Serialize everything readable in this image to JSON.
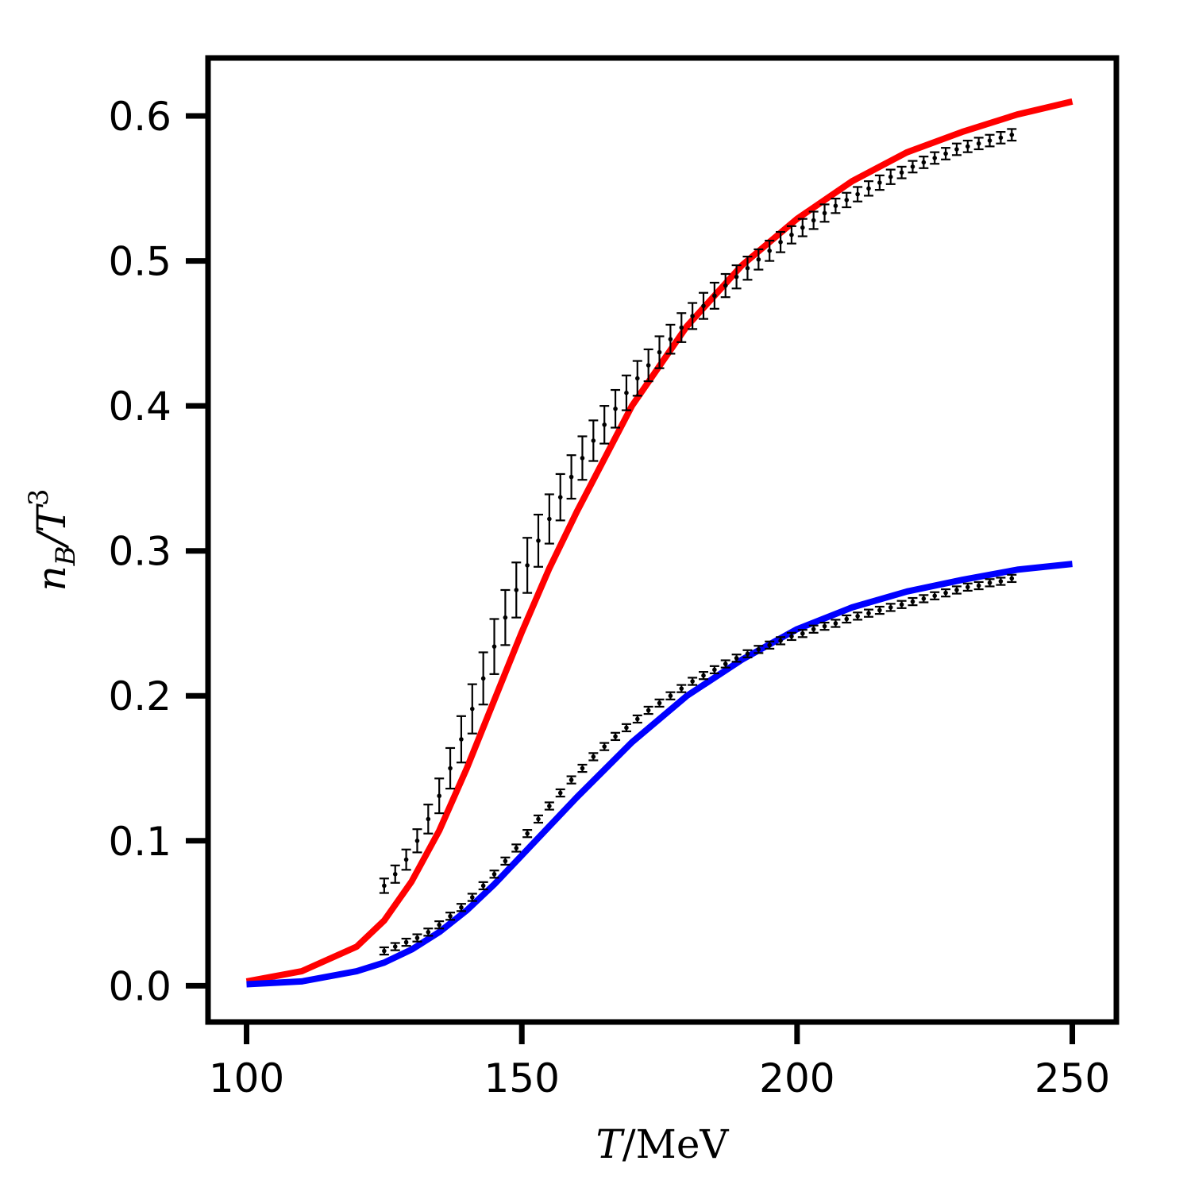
{
  "chart_data": {
    "type": "line",
    "xlabel_var": "T",
    "xlabel_unit": "/MeV",
    "ylabel_var": "n",
    "ylabel_sub": "B",
    "ylabel_mid": "/T",
    "ylabel_sup": "3",
    "xlim": [
      93,
      258
    ],
    "ylim": [
      -0.025,
      0.64
    ],
    "xticks": [
      100,
      150,
      200,
      250
    ],
    "xtick_labels": [
      "100",
      "150",
      "200",
      "250"
    ],
    "yticks": [
      0.0,
      0.1,
      0.2,
      0.3,
      0.4,
      0.5,
      0.6
    ],
    "ytick_labels": [
      "0.0",
      "0.1",
      "0.2",
      "0.3",
      "0.4",
      "0.5",
      "0.6"
    ],
    "grid": false,
    "series": [
      {
        "color": "#ff0000",
        "style": "line",
        "x": [
          100,
          110,
          120,
          125,
          130,
          135,
          140,
          145,
          150,
          155,
          160,
          170,
          180,
          190,
          200,
          210,
          220,
          230,
          240,
          250
        ],
        "y": [
          0.003,
          0.01,
          0.027,
          0.045,
          0.072,
          0.107,
          0.15,
          0.197,
          0.244,
          0.288,
          0.327,
          0.4,
          0.455,
          0.497,
          0.529,
          0.555,
          0.575,
          0.589,
          0.601,
          0.61
        ]
      },
      {
        "color": "#0000ff",
        "style": "line",
        "x": [
          100,
          110,
          120,
          125,
          130,
          135,
          140,
          145,
          150,
          155,
          160,
          170,
          180,
          190,
          200,
          210,
          220,
          230,
          240,
          250
        ],
        "y": [
          0.001,
          0.003,
          0.01,
          0.016,
          0.025,
          0.037,
          0.052,
          0.07,
          0.09,
          0.11,
          0.13,
          0.168,
          0.2,
          0.225,
          0.246,
          0.261,
          0.272,
          0.28,
          0.287,
          0.291
        ]
      },
      {
        "color": "#000000",
        "style": "errorbar",
        "x": [
          125,
          127,
          129,
          131,
          133,
          135,
          137,
          139,
          141,
          143,
          145,
          147,
          149,
          151,
          153,
          155,
          157,
          159,
          161,
          163,
          165,
          167,
          169,
          171,
          173,
          175,
          177,
          179,
          181,
          183,
          185,
          187,
          189,
          191,
          193,
          195,
          197,
          199,
          201,
          203,
          205,
          207,
          209,
          211,
          213,
          215,
          217,
          219,
          221,
          223,
          225,
          227,
          229,
          231,
          233,
          235,
          237,
          239
        ],
        "y": [
          0.069,
          0.077,
          0.087,
          0.1,
          0.115,
          0.131,
          0.15,
          0.17,
          0.191,
          0.212,
          0.234,
          0.254,
          0.273,
          0.29,
          0.307,
          0.322,
          0.337,
          0.351,
          0.364,
          0.376,
          0.387,
          0.398,
          0.409,
          0.419,
          0.428,
          0.437,
          0.446,
          0.454,
          0.462,
          0.469,
          0.476,
          0.483,
          0.489,
          0.495,
          0.501,
          0.507,
          0.513,
          0.518,
          0.523,
          0.528,
          0.533,
          0.538,
          0.542,
          0.546,
          0.55,
          0.554,
          0.558,
          0.561,
          0.565,
          0.568,
          0.571,
          0.574,
          0.577,
          0.579,
          0.581,
          0.583,
          0.585,
          0.587
        ],
        "err": [
          0.005,
          0.006,
          0.007,
          0.008,
          0.01,
          0.012,
          0.014,
          0.016,
          0.017,
          0.018,
          0.019,
          0.019,
          0.019,
          0.019,
          0.018,
          0.017,
          0.016,
          0.015,
          0.015,
          0.014,
          0.013,
          0.013,
          0.012,
          0.012,
          0.011,
          0.011,
          0.01,
          0.01,
          0.009,
          0.009,
          0.009,
          0.008,
          0.008,
          0.008,
          0.007,
          0.007,
          0.007,
          0.006,
          0.006,
          0.006,
          0.006,
          0.005,
          0.005,
          0.005,
          0.005,
          0.005,
          0.005,
          0.004,
          0.004,
          0.004,
          0.004,
          0.004,
          0.004,
          0.004,
          0.004,
          0.004,
          0.004,
          0.004
        ]
      },
      {
        "color": "#000000",
        "style": "errorbar",
        "x": [
          125,
          127,
          129,
          131,
          133,
          135,
          137,
          139,
          141,
          143,
          145,
          147,
          149,
          151,
          153,
          155,
          157,
          159,
          161,
          163,
          165,
          167,
          169,
          171,
          173,
          175,
          177,
          179,
          181,
          183,
          185,
          187,
          189,
          191,
          193,
          195,
          197,
          199,
          201,
          203,
          205,
          207,
          209,
          211,
          213,
          215,
          217,
          219,
          221,
          223,
          225,
          227,
          229,
          231,
          233,
          235,
          237,
          239
        ],
        "y": [
          0.024,
          0.027,
          0.03,
          0.033,
          0.037,
          0.042,
          0.048,
          0.054,
          0.061,
          0.069,
          0.077,
          0.086,
          0.095,
          0.105,
          0.115,
          0.124,
          0.133,
          0.142,
          0.15,
          0.158,
          0.165,
          0.172,
          0.178,
          0.184,
          0.19,
          0.195,
          0.2,
          0.205,
          0.21,
          0.214,
          0.218,
          0.222,
          0.226,
          0.229,
          0.232,
          0.235,
          0.238,
          0.241,
          0.243,
          0.246,
          0.248,
          0.25,
          0.253,
          0.255,
          0.257,
          0.259,
          0.261,
          0.263,
          0.265,
          0.267,
          0.269,
          0.271,
          0.273,
          0.275,
          0.276,
          0.278,
          0.279,
          0.281
        ],
        "err": [
          0.0025,
          0.0025,
          0.0025,
          0.0025,
          0.0025,
          0.0025,
          0.0025,
          0.0025,
          0.0025,
          0.0025,
          0.0025,
          0.0025,
          0.0025,
          0.0025,
          0.0025,
          0.0025,
          0.0025,
          0.0025,
          0.0025,
          0.0025,
          0.0025,
          0.0025,
          0.0025,
          0.0025,
          0.0025,
          0.0025,
          0.0025,
          0.0025,
          0.0025,
          0.0025,
          0.0025,
          0.0025,
          0.0025,
          0.0025,
          0.0025,
          0.0025,
          0.0025,
          0.0025,
          0.0025,
          0.0025,
          0.0025,
          0.0025,
          0.0025,
          0.0025,
          0.0025,
          0.0025,
          0.0025,
          0.0025,
          0.0025,
          0.0025,
          0.0025,
          0.0025,
          0.0025,
          0.0025,
          0.0025,
          0.0025,
          0.0025,
          0.0025
        ]
      }
    ]
  }
}
